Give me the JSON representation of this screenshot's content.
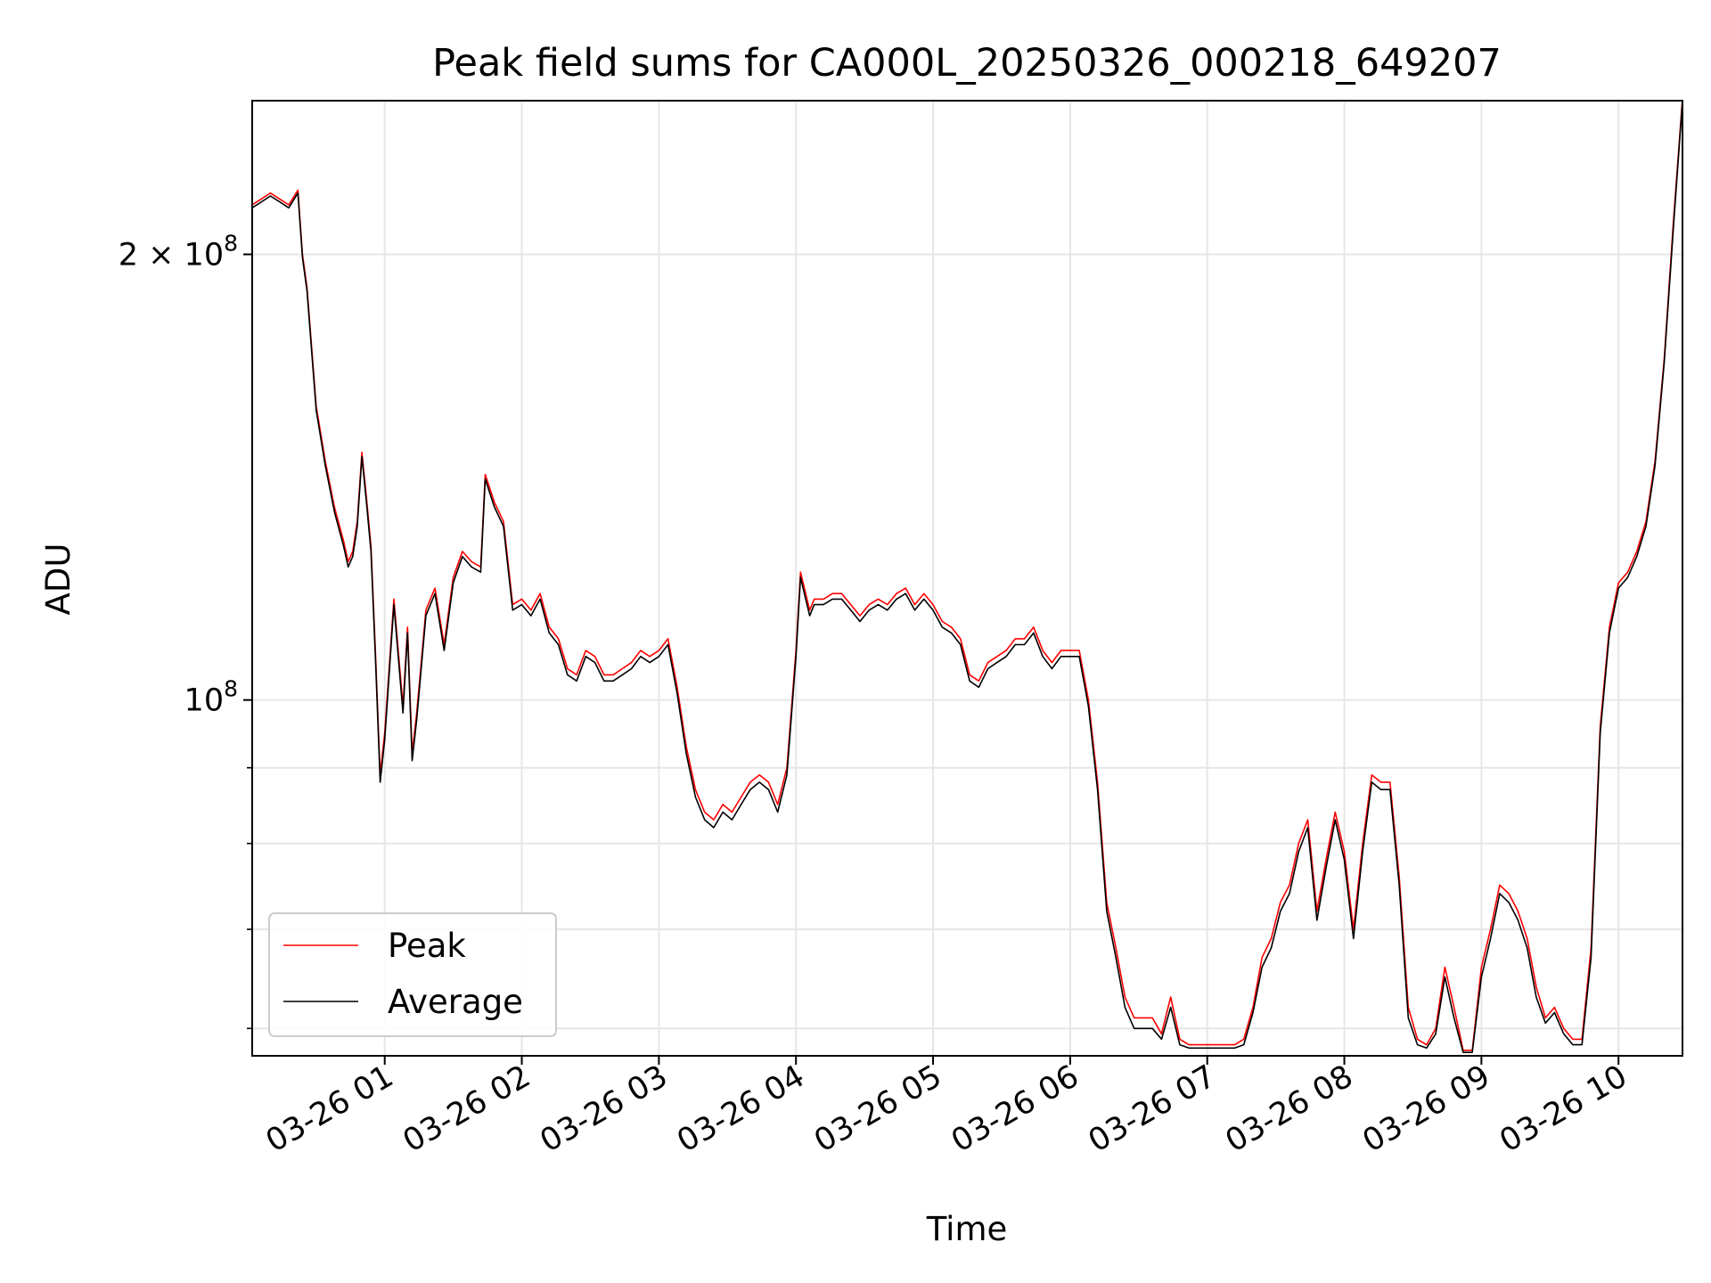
{
  "chart_data": {
    "type": "line",
    "title": "Peak field sums for CA000L_20250326_000218_649207",
    "xlabel": "Time",
    "ylabel": "ADU",
    "yscale": "log",
    "xlim": [
      "2025-03-26 00:02",
      "2025-03-26 10:28"
    ],
    "ylim": [
      57500000,
      254000000
    ],
    "grid": true,
    "legend_position": "lower-left",
    "x_ticks": [
      {
        "value": "2025-03-26 01:00",
        "label": "03-26 01"
      },
      {
        "value": "2025-03-26 02:00",
        "label": "03-26 02"
      },
      {
        "value": "2025-03-26 03:00",
        "label": "03-26 03"
      },
      {
        "value": "2025-03-26 04:00",
        "label": "03-26 04"
      },
      {
        "value": "2025-03-26 05:00",
        "label": "03-26 05"
      },
      {
        "value": "2025-03-26 06:00",
        "label": "03-26 06"
      },
      {
        "value": "2025-03-26 07:00",
        "label": "03-26 07"
      },
      {
        "value": "2025-03-26 08:00",
        "label": "03-26 08"
      },
      {
        "value": "2025-03-26 09:00",
        "label": "03-26 09"
      },
      {
        "value": "2025-03-26 10:00",
        "label": "03-26 10"
      }
    ],
    "y_major_ticks": [
      {
        "value": 100000000,
        "mantissa": "",
        "base": "10",
        "exp": "8"
      },
      {
        "value": 200000000,
        "mantissa": "2 × ",
        "base": "10",
        "exp": "8"
      }
    ],
    "y_minor_ticks": [
      60000000,
      70000000,
      80000000,
      90000000
    ],
    "series": [
      {
        "name": "Peak",
        "color": "#ff0000",
        "x": [
          "2025-03-26 00:02",
          "2025-03-26 00:10",
          "2025-03-26 00:14",
          "2025-03-26 00:18",
          "2025-03-26 00:22",
          "2025-03-26 00:24",
          "2025-03-26 00:26",
          "2025-03-26 00:30",
          "2025-03-26 00:34",
          "2025-03-26 00:38",
          "2025-03-26 00:42",
          "2025-03-26 00:44",
          "2025-03-26 00:46",
          "2025-03-26 00:48",
          "2025-03-26 00:50",
          "2025-03-26 00:52",
          "2025-03-26 00:54",
          "2025-03-26 00:56",
          "2025-03-26 00:58",
          "2025-03-26 01:00",
          "2025-03-26 01:04",
          "2025-03-26 01:08",
          "2025-03-26 01:10",
          "2025-03-26 01:12",
          "2025-03-26 01:14",
          "2025-03-26 01:18",
          "2025-03-26 01:22",
          "2025-03-26 01:26",
          "2025-03-26 01:30",
          "2025-03-26 01:34",
          "2025-03-26 01:38",
          "2025-03-26 01:42",
          "2025-03-26 01:44",
          "2025-03-26 01:48",
          "2025-03-26 01:52",
          "2025-03-26 01:56",
          "2025-03-26 02:00",
          "2025-03-26 02:04",
          "2025-03-26 02:08",
          "2025-03-26 02:12",
          "2025-03-26 02:16",
          "2025-03-26 02:20",
          "2025-03-26 02:24",
          "2025-03-26 02:28",
          "2025-03-26 02:32",
          "2025-03-26 02:36",
          "2025-03-26 02:40",
          "2025-03-26 02:44",
          "2025-03-26 02:48",
          "2025-03-26 02:52",
          "2025-03-26 02:56",
          "2025-03-26 03:00",
          "2025-03-26 03:04",
          "2025-03-26 03:08",
          "2025-03-26 03:12",
          "2025-03-26 03:16",
          "2025-03-26 03:20",
          "2025-03-26 03:24",
          "2025-03-26 03:28",
          "2025-03-26 03:32",
          "2025-03-26 03:36",
          "2025-03-26 03:40",
          "2025-03-26 03:44",
          "2025-03-26 03:48",
          "2025-03-26 03:52",
          "2025-03-26 03:56",
          "2025-03-26 04:00",
          "2025-03-26 04:02",
          "2025-03-26 04:06",
          "2025-03-26 04:08",
          "2025-03-26 04:12",
          "2025-03-26 04:16",
          "2025-03-26 04:20",
          "2025-03-26 04:24",
          "2025-03-26 04:28",
          "2025-03-26 04:32",
          "2025-03-26 04:36",
          "2025-03-26 04:40",
          "2025-03-26 04:44",
          "2025-03-26 04:48",
          "2025-03-26 04:52",
          "2025-03-26 04:56",
          "2025-03-26 05:00",
          "2025-03-26 05:04",
          "2025-03-26 05:08",
          "2025-03-26 05:12",
          "2025-03-26 05:16",
          "2025-03-26 05:20",
          "2025-03-26 05:24",
          "2025-03-26 05:28",
          "2025-03-26 05:32",
          "2025-03-26 05:36",
          "2025-03-26 05:40",
          "2025-03-26 05:44",
          "2025-03-26 05:48",
          "2025-03-26 05:52",
          "2025-03-26 05:56",
          "2025-03-26 06:00",
          "2025-03-26 06:04",
          "2025-03-26 06:08",
          "2025-03-26 06:12",
          "2025-03-26 06:16",
          "2025-03-26 06:20",
          "2025-03-26 06:24",
          "2025-03-26 06:28",
          "2025-03-26 06:32",
          "2025-03-26 06:36",
          "2025-03-26 06:40",
          "2025-03-26 06:44",
          "2025-03-26 06:48",
          "2025-03-26 06:52",
          "2025-03-26 06:56",
          "2025-03-26 07:00",
          "2025-03-26 07:04",
          "2025-03-26 07:08",
          "2025-03-26 07:12",
          "2025-03-26 07:16",
          "2025-03-26 07:20",
          "2025-03-26 07:24",
          "2025-03-26 07:28",
          "2025-03-26 07:32",
          "2025-03-26 07:36",
          "2025-03-26 07:40",
          "2025-03-26 07:44",
          "2025-03-26 07:48",
          "2025-03-26 07:52",
          "2025-03-26 07:56",
          "2025-03-26 08:00",
          "2025-03-26 08:04",
          "2025-03-26 08:08",
          "2025-03-26 08:12",
          "2025-03-26 08:16",
          "2025-03-26 08:20",
          "2025-03-26 08:24",
          "2025-03-26 08:28",
          "2025-03-26 08:32",
          "2025-03-26 08:36",
          "2025-03-26 08:40",
          "2025-03-26 08:44",
          "2025-03-26 08:48",
          "2025-03-26 08:52",
          "2025-03-26 08:56",
          "2025-03-26 09:00",
          "2025-03-26 09:04",
          "2025-03-26 09:08",
          "2025-03-26 09:12",
          "2025-03-26 09:16",
          "2025-03-26 09:20",
          "2025-03-26 09:24",
          "2025-03-26 09:28",
          "2025-03-26 09:32",
          "2025-03-26 09:36",
          "2025-03-26 09:40",
          "2025-03-26 09:44",
          "2025-03-26 09:48",
          "2025-03-26 09:52",
          "2025-03-26 09:56",
          "2025-03-26 10:00",
          "2025-03-26 10:04",
          "2025-03-26 10:08",
          "2025-03-26 10:12",
          "2025-03-26 10:16",
          "2025-03-26 10:20",
          "2025-03-26 10:24",
          "2025-03-26 10:28"
        ],
        "y": [
          216000000,
          220000000,
          218000000,
          216000000,
          221000000,
          200000000,
          190000000,
          158000000,
          145000000,
          135000000,
          128000000,
          124000000,
          126000000,
          132000000,
          147000000,
          137000000,
          127000000,
          107000000,
          89000000,
          95000000,
          117000000,
          99000000,
          112000000,
          92000000,
          98000000,
          115000000,
          119000000,
          109000000,
          121000000,
          126000000,
          124000000,
          123000000,
          142000000,
          136000000,
          132000000,
          116000000,
          117000000,
          115000000,
          118000000,
          112000000,
          110000000,
          105000000,
          104000000,
          108000000,
          107000000,
          104000000,
          104000000,
          105000000,
          106000000,
          108000000,
          107000000,
          108000000,
          110000000,
          102000000,
          93000000,
          87000000,
          84000000,
          83000000,
          85000000,
          84000000,
          86000000,
          88000000,
          89000000,
          88000000,
          85000000,
          90000000,
          108000000,
          122000000,
          115000000,
          117000000,
          117000000,
          118000000,
          118000000,
          116000000,
          114000000,
          116000000,
          117000000,
          116000000,
          118000000,
          119000000,
          116000000,
          118000000,
          116000000,
          113000000,
          112000000,
          110000000,
          104000000,
          103000000,
          106000000,
          107000000,
          108000000,
          110000000,
          110000000,
          112000000,
          108000000,
          106000000,
          108000000,
          108000000,
          108000000,
          100000000,
          88000000,
          73000000,
          68000000,
          63000000,
          61000000,
          61000000,
          61000000,
          59500000,
          63000000,
          59000000,
          58500000,
          58500000,
          58500000,
          58500000,
          58500000,
          58500000,
          59000000,
          62000000,
          67000000,
          69000000,
          73000000,
          75000000,
          80000000,
          83000000,
          72000000,
          78000000,
          84000000,
          79000000,
          70000000,
          80000000,
          89000000,
          88000000,
          88000000,
          76000000,
          62000000,
          59000000,
          58500000,
          60000000,
          66000000,
          62000000,
          58000000,
          58000000,
          66000000,
          70000000,
          75000000,
          74000000,
          72000000,
          69000000,
          64000000,
          61000000,
          62000000,
          60000000,
          59000000,
          59000000,
          68000000,
          96000000,
          112000000,
          120000000,
          122000000,
          126000000,
          132000000,
          145000000,
          170000000,
          210000000,
          255000000
        ]
      },
      {
        "name": "Average",
        "color": "#000000",
        "x": [
          "2025-03-26 00:02",
          "2025-03-26 00:10",
          "2025-03-26 00:14",
          "2025-03-26 00:18",
          "2025-03-26 00:22",
          "2025-03-26 00:24",
          "2025-03-26 00:26",
          "2025-03-26 00:30",
          "2025-03-26 00:34",
          "2025-03-26 00:38",
          "2025-03-26 00:42",
          "2025-03-26 00:44",
          "2025-03-26 00:46",
          "2025-03-26 00:48",
          "2025-03-26 00:50",
          "2025-03-26 00:52",
          "2025-03-26 00:54",
          "2025-03-26 00:56",
          "2025-03-26 00:58",
          "2025-03-26 01:00",
          "2025-03-26 01:04",
          "2025-03-26 01:08",
          "2025-03-26 01:10",
          "2025-03-26 01:12",
          "2025-03-26 01:14",
          "2025-03-26 01:18",
          "2025-03-26 01:22",
          "2025-03-26 01:26",
          "2025-03-26 01:30",
          "2025-03-26 01:34",
          "2025-03-26 01:38",
          "2025-03-26 01:42",
          "2025-03-26 01:44",
          "2025-03-26 01:48",
          "2025-03-26 01:52",
          "2025-03-26 01:56",
          "2025-03-26 02:00",
          "2025-03-26 02:04",
          "2025-03-26 02:08",
          "2025-03-26 02:12",
          "2025-03-26 02:16",
          "2025-03-26 02:20",
          "2025-03-26 02:24",
          "2025-03-26 02:28",
          "2025-03-26 02:32",
          "2025-03-26 02:36",
          "2025-03-26 02:40",
          "2025-03-26 02:44",
          "2025-03-26 02:48",
          "2025-03-26 02:52",
          "2025-03-26 02:56",
          "2025-03-26 03:00",
          "2025-03-26 03:04",
          "2025-03-26 03:08",
          "2025-03-26 03:12",
          "2025-03-26 03:16",
          "2025-03-26 03:20",
          "2025-03-26 03:24",
          "2025-03-26 03:28",
          "2025-03-26 03:32",
          "2025-03-26 03:36",
          "2025-03-26 03:40",
          "2025-03-26 03:44",
          "2025-03-26 03:48",
          "2025-03-26 03:52",
          "2025-03-26 03:56",
          "2025-03-26 04:00",
          "2025-03-26 04:02",
          "2025-03-26 04:06",
          "2025-03-26 04:08",
          "2025-03-26 04:12",
          "2025-03-26 04:16",
          "2025-03-26 04:20",
          "2025-03-26 04:24",
          "2025-03-26 04:28",
          "2025-03-26 04:32",
          "2025-03-26 04:36",
          "2025-03-26 04:40",
          "2025-03-26 04:44",
          "2025-03-26 04:48",
          "2025-03-26 04:52",
          "2025-03-26 04:56",
          "2025-03-26 05:00",
          "2025-03-26 05:04",
          "2025-03-26 05:08",
          "2025-03-26 05:12",
          "2025-03-26 05:16",
          "2025-03-26 05:20",
          "2025-03-26 05:24",
          "2025-03-26 05:28",
          "2025-03-26 05:32",
          "2025-03-26 05:36",
          "2025-03-26 05:40",
          "2025-03-26 05:44",
          "2025-03-26 05:48",
          "2025-03-26 05:52",
          "2025-03-26 05:56",
          "2025-03-26 06:00",
          "2025-03-26 06:04",
          "2025-03-26 06:08",
          "2025-03-26 06:12",
          "2025-03-26 06:16",
          "2025-03-26 06:20",
          "2025-03-26 06:24",
          "2025-03-26 06:28",
          "2025-03-26 06:32",
          "2025-03-26 06:36",
          "2025-03-26 06:40",
          "2025-03-26 06:44",
          "2025-03-26 06:48",
          "2025-03-26 06:52",
          "2025-03-26 06:56",
          "2025-03-26 07:00",
          "2025-03-26 07:04",
          "2025-03-26 07:08",
          "2025-03-26 07:12",
          "2025-03-26 07:16",
          "2025-03-26 07:20",
          "2025-03-26 07:24",
          "2025-03-26 07:28",
          "2025-03-26 07:32",
          "2025-03-26 07:36",
          "2025-03-26 07:40",
          "2025-03-26 07:44",
          "2025-03-26 07:48",
          "2025-03-26 07:52",
          "2025-03-26 07:56",
          "2025-03-26 08:00",
          "2025-03-26 08:04",
          "2025-03-26 08:08",
          "2025-03-26 08:12",
          "2025-03-26 08:16",
          "2025-03-26 08:20",
          "2025-03-26 08:24",
          "2025-03-26 08:28",
          "2025-03-26 08:32",
          "2025-03-26 08:36",
          "2025-03-26 08:40",
          "2025-03-26 08:44",
          "2025-03-26 08:48",
          "2025-03-26 08:52",
          "2025-03-26 08:56",
          "2025-03-26 09:00",
          "2025-03-26 09:04",
          "2025-03-26 09:08",
          "2025-03-26 09:12",
          "2025-03-26 09:16",
          "2025-03-26 09:20",
          "2025-03-26 09:24",
          "2025-03-26 09:28",
          "2025-03-26 09:32",
          "2025-03-26 09:36",
          "2025-03-26 09:40",
          "2025-03-26 09:44",
          "2025-03-26 09:48",
          "2025-03-26 09:52",
          "2025-03-26 09:56",
          "2025-03-26 10:00",
          "2025-03-26 10:04",
          "2025-03-26 10:08",
          "2025-03-26 10:12",
          "2025-03-26 10:16",
          "2025-03-26 10:20",
          "2025-03-26 10:24",
          "2025-03-26 10:28"
        ],
        "y": [
          215000000,
          219000000,
          217000000,
          215000000,
          220000000,
          199000000,
          189000000,
          157000000,
          144000000,
          134000000,
          127000000,
          123000000,
          125000000,
          131000000,
          146000000,
          136000000,
          126000000,
          106000000,
          88000000,
          94000000,
          116000000,
          98000000,
          111000000,
          91000000,
          97000000,
          114000000,
          118000000,
          108000000,
          120000000,
          125000000,
          123000000,
          122000000,
          141000000,
          135000000,
          131000000,
          115000000,
          116000000,
          114000000,
          117000000,
          111000000,
          109000000,
          104000000,
          103000000,
          107000000,
          106000000,
          103000000,
          103000000,
          104000000,
          105000000,
          107000000,
          106000000,
          107000000,
          109000000,
          101000000,
          92000000,
          86000000,
          83000000,
          82000000,
          84000000,
          83000000,
          85000000,
          87000000,
          88000000,
          87000000,
          84000000,
          89000000,
          107000000,
          121000000,
          114000000,
          116000000,
          116000000,
          117000000,
          117000000,
          115000000,
          113000000,
          115000000,
          116000000,
          115000000,
          117000000,
          118000000,
          115000000,
          117000000,
          115000000,
          112000000,
          111000000,
          109000000,
          103000000,
          102000000,
          105000000,
          106000000,
          107000000,
          109000000,
          109000000,
          111000000,
          107000000,
          105000000,
          107000000,
          107000000,
          107000000,
          99000000,
          87000000,
          72000000,
          67000000,
          62000000,
          60000000,
          60000000,
          60000000,
          59000000,
          62000000,
          58500000,
          58200000,
          58200000,
          58200000,
          58200000,
          58200000,
          58200000,
          58500000,
          61500000,
          66000000,
          68000000,
          72000000,
          74000000,
          79000000,
          82000000,
          71000000,
          77000000,
          83000000,
          78000000,
          69000000,
          79000000,
          88000000,
          87000000,
          87000000,
          75000000,
          61000000,
          58500000,
          58200000,
          59500000,
          65000000,
          61000000,
          57800000,
          57800000,
          65000000,
          69000000,
          74000000,
          73000000,
          71000000,
          68000000,
          63000000,
          60500000,
          61500000,
          59500000,
          58500000,
          58500000,
          67000000,
          95000000,
          111000000,
          119000000,
          121000000,
          125000000,
          131000000,
          144000000,
          169000000,
          208000000,
          254000000
        ]
      }
    ]
  }
}
